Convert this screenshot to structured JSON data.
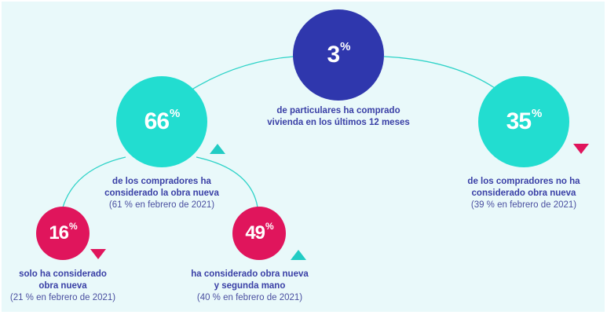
{
  "colors": {
    "background": "#e9f9fa",
    "dark_blue": "#2f37ad",
    "teal": "#22ddd0",
    "red": "#e0155c",
    "text": "#3a40a6"
  },
  "nodes": {
    "root": {
      "value": "3",
      "unit": "%",
      "caption": [
        "de particulares ha comprado",
        "vivienda en los últimos 12 meses"
      ]
    },
    "new_considered": {
      "value": "66",
      "unit": "%",
      "caption": [
        "de los compradores ha",
        "considerado la obra nueva"
      ],
      "previous": "(61 % en febrero de 2021)",
      "trend": "up"
    },
    "not_new": {
      "value": "35",
      "unit": "%",
      "caption": [
        "de los compradores no ha",
        "considerado obra nueva"
      ],
      "previous": "(39 % en febrero de 2021)",
      "trend": "down"
    },
    "only_new": {
      "value": "16",
      "unit": "%",
      "caption": [
        "solo ha considerado",
        "obra nueva"
      ],
      "previous": "(21 % en febrero de 2021)",
      "trend": "down"
    },
    "new_and_used": {
      "value": "49",
      "unit": "%",
      "caption": [
        "ha considerado obra nueva",
        "y segunda mano"
      ],
      "previous": "(40 % en febrero de 2021)",
      "trend": "up"
    }
  }
}
